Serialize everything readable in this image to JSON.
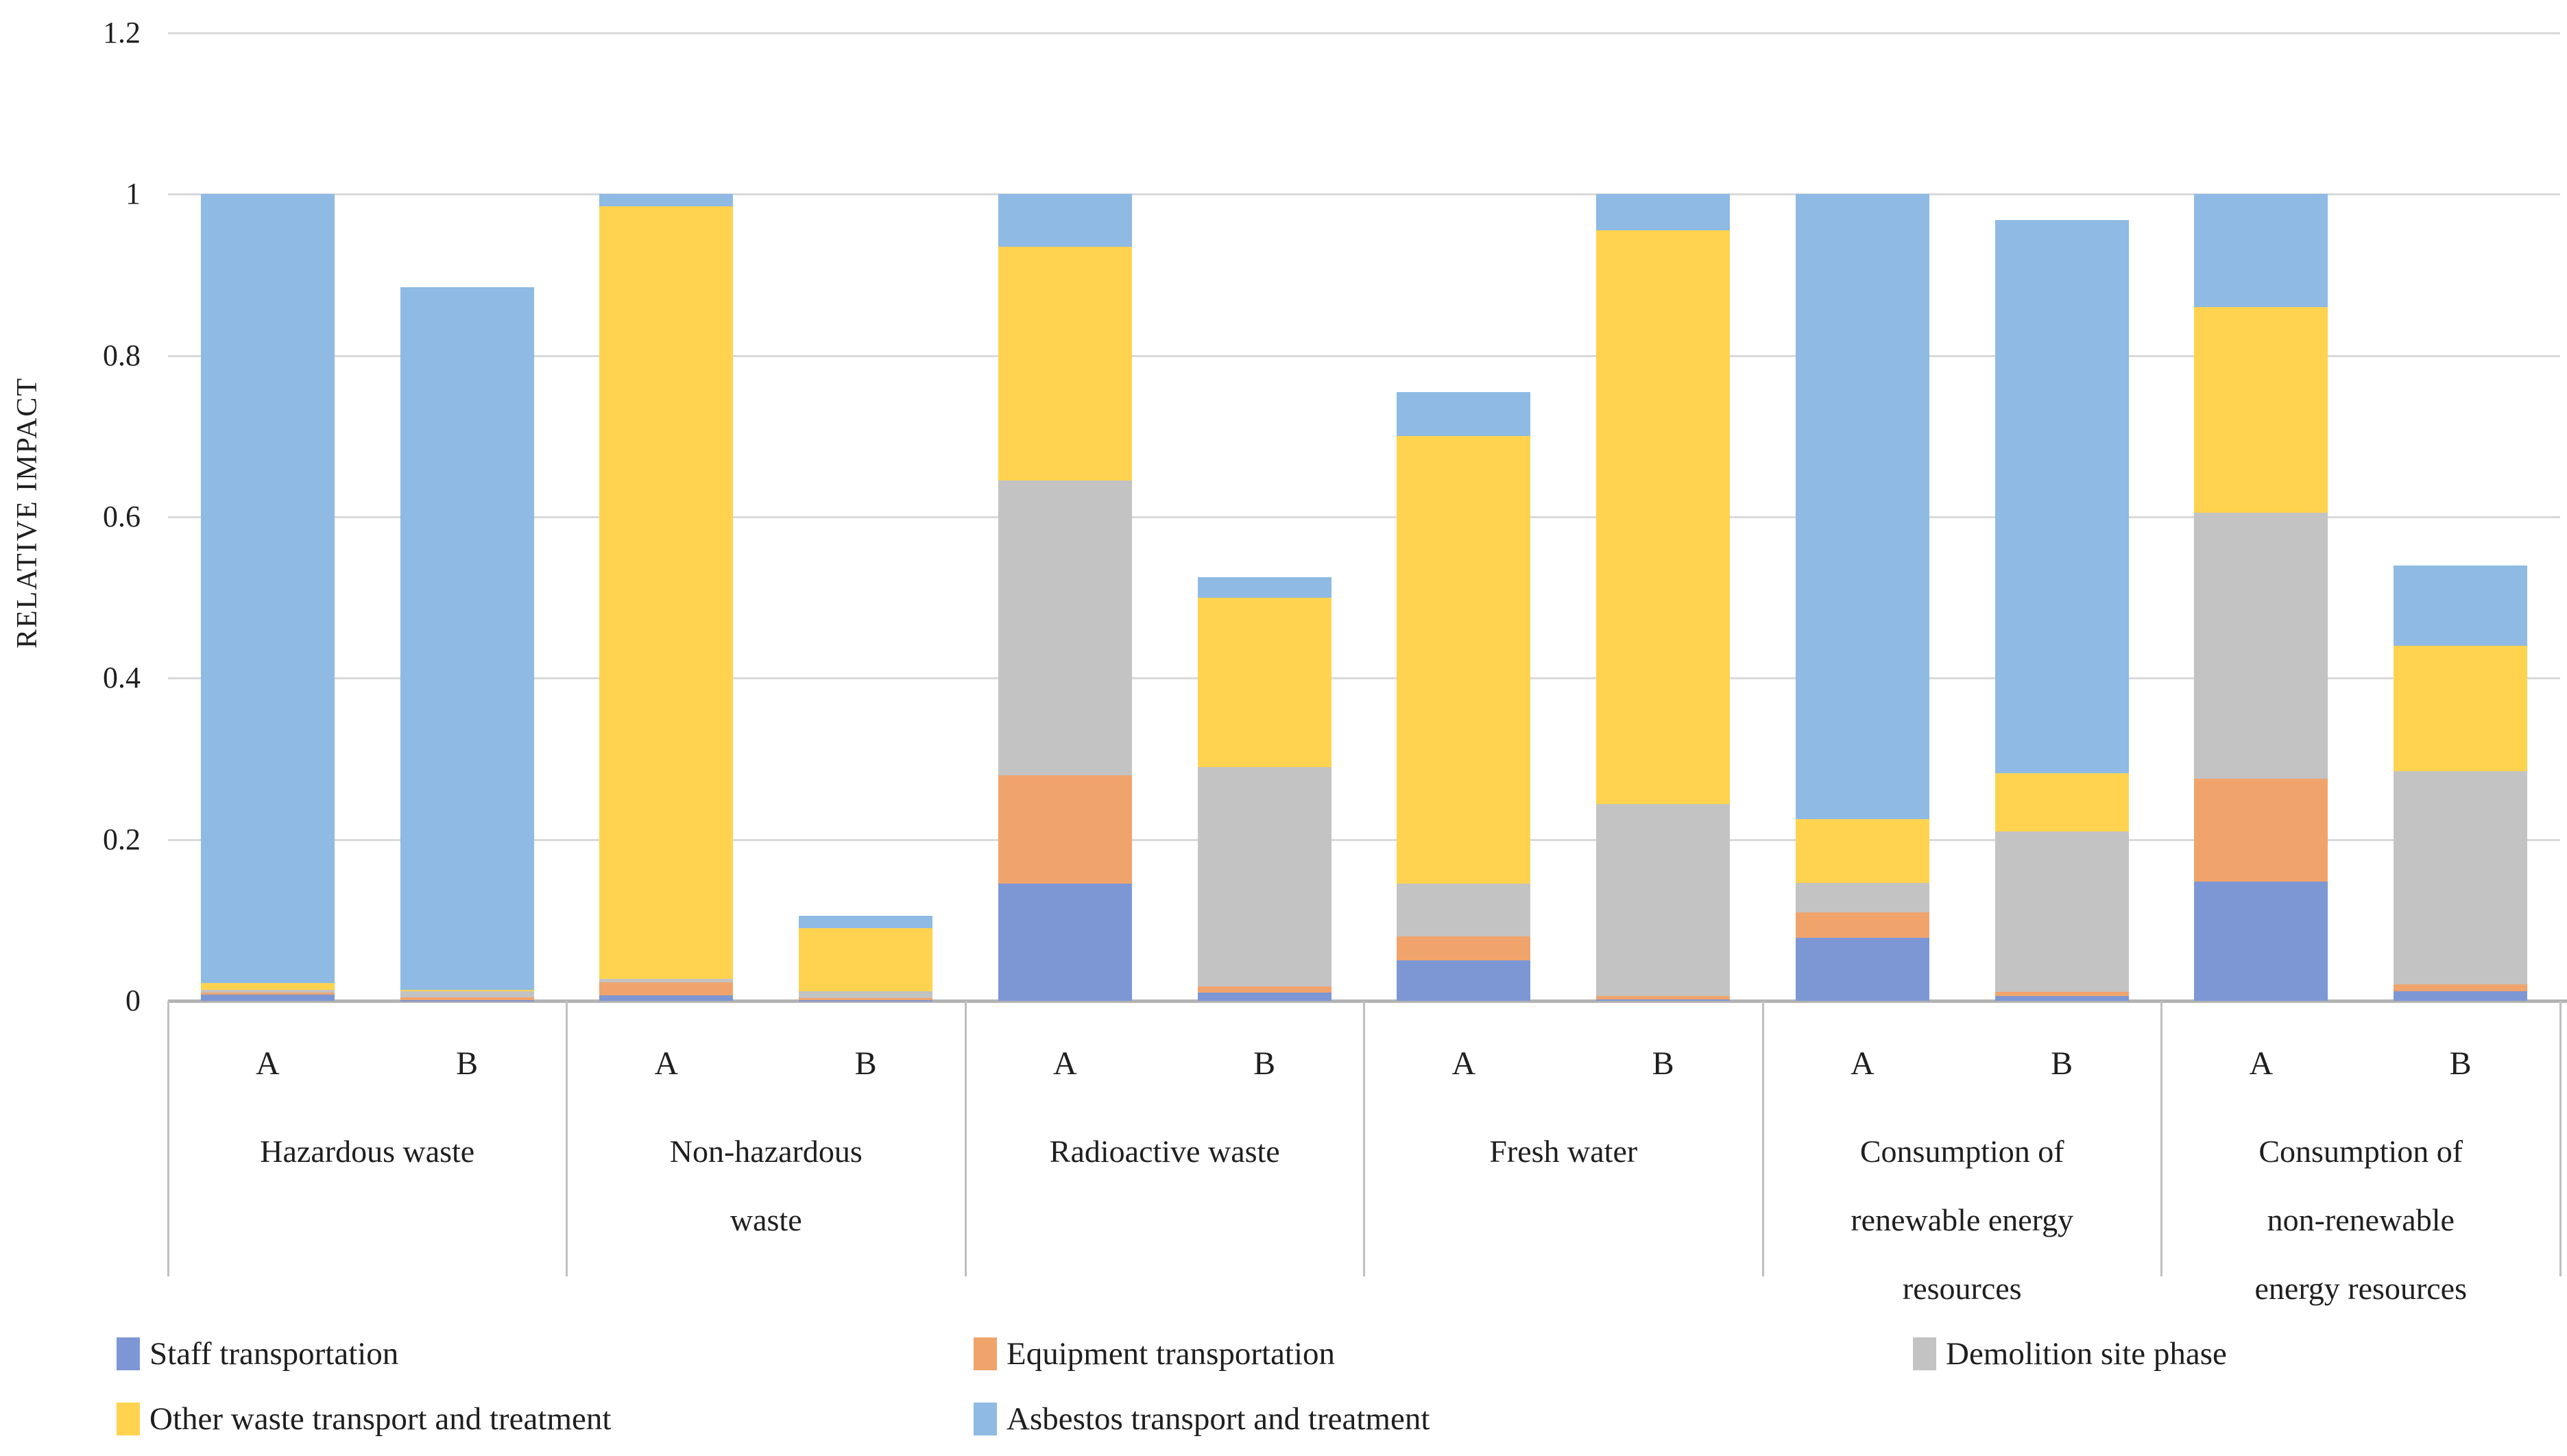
{
  "chart_data": {
    "type": "bar",
    "subtype": "stacked-vertical",
    "ylabel": "RELATIVE IMPACT",
    "ylim": [
      0,
      1.2
    ],
    "grid": true,
    "y_ticks": [
      {
        "label": "0",
        "value": 0
      },
      {
        "label": "0.2",
        "value": 0.2
      },
      {
        "label": "0.4",
        "value": 0.4
      },
      {
        "label": "0.6",
        "value": 0.6
      },
      {
        "label": "0.8",
        "value": 0.8
      },
      {
        "label": "1",
        "value": 1
      },
      {
        "label": "1.2",
        "value": 1.2
      }
    ],
    "series": [
      {
        "id": "staff",
        "label": "Staff transportation",
        "color": "#7D97D5"
      },
      {
        "id": "equipment",
        "label": "Equipment transportation",
        "color": "#F0A46C"
      },
      {
        "id": "demolition",
        "label": "Demolition site phase",
        "color": "#C3C3C3"
      },
      {
        "id": "other",
        "label": "Other waste transport and treatment",
        "color": "#FFD34F"
      },
      {
        "id": "asbestos",
        "label": "Asbestos transport and treatment",
        "color": "#8EBAE4"
      }
    ],
    "categories": [
      {
        "label_lines": [
          "Hazardous waste"
        ],
        "bars": [
          {
            "label": "A",
            "values": [
              0.008,
              0.002,
              0.004,
              0.008,
              0.978
            ]
          },
          {
            "label": "B",
            "values": [
              0.001,
              0.003,
              0.008,
              0.002,
              0.871
            ]
          }
        ]
      },
      {
        "label_lines": [
          "Non-hazardous",
          "waste"
        ],
        "bars": [
          {
            "label": "A",
            "values": [
              0.007,
              0.016,
              0.004,
              0.958,
              0.015
            ]
          },
          {
            "label": "B",
            "values": [
              0.001,
              0.002,
              0.009,
              0.078,
              0.015
            ]
          }
        ]
      },
      {
        "label_lines": [
          "Radioactive waste"
        ],
        "bars": [
          {
            "label": "A",
            "values": [
              0.145,
              0.135,
              0.365,
              0.29,
              0.065
            ]
          },
          {
            "label": "B",
            "values": [
              0.01,
              0.008,
              0.272,
              0.21,
              0.025
            ]
          }
        ]
      },
      {
        "label_lines": [
          "Fresh water"
        ],
        "bars": [
          {
            "label": "A",
            "values": [
              0.05,
              0.03,
              0.065,
              0.555,
              0.055
            ]
          },
          {
            "label": "B",
            "values": [
              0.002,
              0.004,
              0.238,
              0.711,
              0.045
            ]
          }
        ]
      },
      {
        "label_lines": [
          "Consumption of",
          "renewable energy",
          "resources"
        ],
        "bars": [
          {
            "label": "A",
            "values": [
              0.078,
              0.032,
              0.036,
              0.079,
              0.775
            ]
          },
          {
            "label": "B",
            "values": [
              0.006,
              0.005,
              0.199,
              0.072,
              0.686
            ]
          }
        ]
      },
      {
        "label_lines": [
          "Consumption of",
          "non-renewable",
          "energy resources"
        ],
        "bars": [
          {
            "label": "A",
            "values": [
              0.148,
              0.127,
              0.33,
              0.255,
              0.14
            ]
          },
          {
            "label": "B",
            "values": [
              0.012,
              0.008,
              0.265,
              0.155,
              0.1
            ]
          }
        ]
      }
    ],
    "legend_position": "bottom",
    "colors": {
      "gridline": "#D9D9D9",
      "axis_line": "#B3B3B3",
      "category_border": "#BFBFBF",
      "text": "#1F1F1F",
      "background": "#FFFFFF"
    }
  }
}
